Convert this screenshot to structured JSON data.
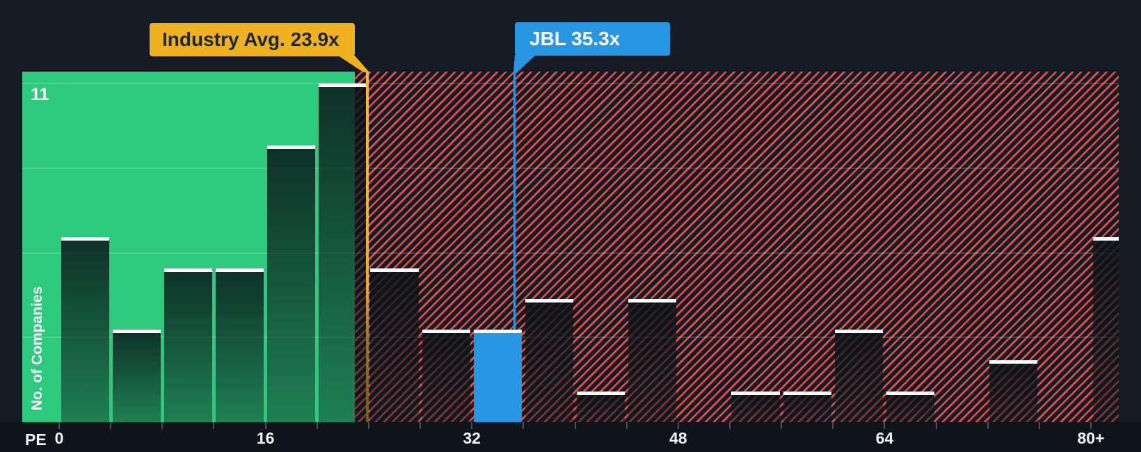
{
  "chart_data": {
    "type": "bar",
    "subtype": "histogram",
    "xlabel": "PE",
    "ylabel": "No. of Companies",
    "y_max_label": "11",
    "ylim": [
      0,
      11
    ],
    "xlim": [
      0,
      84
    ],
    "bin_width": 4,
    "grid": "quarter-interval horizontal lines",
    "legend_position": "none",
    "x_tick_labels": [
      {
        "value": 0,
        "label": "0"
      },
      {
        "value": 16,
        "label": "16"
      },
      {
        "value": 32,
        "label": "32"
      },
      {
        "value": 48,
        "label": "48"
      },
      {
        "value": 64,
        "label": "64"
      },
      {
        "value": 80,
        "label": "80+"
      }
    ],
    "bins": [
      {
        "x0": 0,
        "count": 6
      },
      {
        "x0": 4,
        "count": 3
      },
      {
        "x0": 8,
        "count": 5
      },
      {
        "x0": 12,
        "count": 5
      },
      {
        "x0": 16,
        "count": 9
      },
      {
        "x0": 20,
        "count": 11
      },
      {
        "x0": 24,
        "count": 5
      },
      {
        "x0": 28,
        "count": 3
      },
      {
        "x0": 32,
        "count": 3,
        "highlight": true
      },
      {
        "x0": 36,
        "count": 4
      },
      {
        "x0": 40,
        "count": 1
      },
      {
        "x0": 44,
        "count": 4
      },
      {
        "x0": 48,
        "count": 0
      },
      {
        "x0": 52,
        "count": 1
      },
      {
        "x0": 56,
        "count": 1
      },
      {
        "x0": 60,
        "count": 3
      },
      {
        "x0": 64,
        "count": 1
      },
      {
        "x0": 68,
        "count": 0
      },
      {
        "x0": 72,
        "count": 2
      },
      {
        "x0": 76,
        "count": 0
      },
      {
        "x0": 80,
        "count": 6
      }
    ],
    "markers": {
      "industry_avg": {
        "label": "Industry Avg. 23.9x",
        "value": 23.9
      },
      "company": {
        "label": "JBL 35.3x",
        "value": 35.3,
        "bin_x0": 32
      }
    },
    "colors": {
      "background": "#151a23",
      "below_avg_zone_green": "#2dc97c",
      "above_avg_hatch_red": "#e8504d",
      "company_bar_blue": "#2897e3",
      "industry_marker_yellow": "#eeb11f",
      "bar_cap_white": "#ffffff"
    }
  }
}
